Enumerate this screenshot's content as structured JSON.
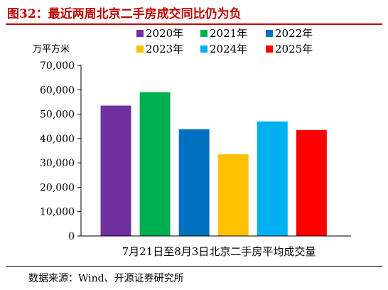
{
  "figure": {
    "title": "图32：最近两周北京二手房成交同比仍为负",
    "source": "数据来源：Wind、开源证券研究所"
  },
  "chart_data": {
    "type": "bar",
    "unit_label": "万平方米",
    "xlabel": "7月21日至8月3日北京二手房平均成交量",
    "ylabel": "",
    "ylim": [
      0,
      70000
    ],
    "yticks": [
      0,
      10000,
      20000,
      30000,
      40000,
      50000,
      60000,
      70000
    ],
    "ytick_labels": [
      "0",
      "10,000",
      "20,000",
      "30,000",
      "40,000",
      "50,000",
      "60,000",
      "70,000"
    ],
    "grid": false,
    "legend_position": "top",
    "series": [
      {
        "name": "2020年",
        "value": 53500,
        "color": "#7030a0"
      },
      {
        "name": "2021年",
        "value": 59000,
        "color": "#00b050"
      },
      {
        "name": "2022年",
        "value": 43800,
        "color": "#0070c0"
      },
      {
        "name": "2023年",
        "value": 33500,
        "color": "#ffc000"
      },
      {
        "name": "2024年",
        "value": 47000,
        "color": "#00b0f0"
      },
      {
        "name": "2025年",
        "value": 43500,
        "color": "#ff0000"
      }
    ]
  }
}
